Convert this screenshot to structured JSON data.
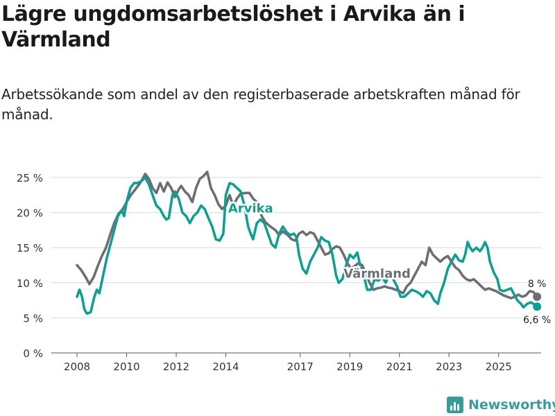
{
  "title": "Lägre ungdomsarbetslöshet i Arvika än i Värmland",
  "subtitle": "Arbetssökande som andel av den registerbaserade arbetskraften månad för månad.",
  "brand": {
    "name": "Newsworthy",
    "icon": "bar-chart-logo-icon"
  },
  "chart_data": {
    "type": "line",
    "x_unit": "year",
    "xlim": [
      2007.2,
      2026.9
    ],
    "ylim": [
      0,
      26
    ],
    "grid": true,
    "y_ticks": [
      {
        "value": 0,
        "label": "0 %"
      },
      {
        "value": 5,
        "label": "5 %"
      },
      {
        "value": 10,
        "label": "10 %"
      },
      {
        "value": 15,
        "label": "15 %"
      },
      {
        "value": 20,
        "label": "20 %"
      },
      {
        "value": 25,
        "label": "25 %"
      }
    ],
    "x_ticks": [
      {
        "value": 2008,
        "label": "2008"
      },
      {
        "value": 2010,
        "label": "2010"
      },
      {
        "value": 2012,
        "label": "2012"
      },
      {
        "value": 2014,
        "label": "2014"
      },
      {
        "value": 2017,
        "label": "2017"
      },
      {
        "value": 2019,
        "label": "2019"
      },
      {
        "value": 2021,
        "label": "2021"
      },
      {
        "value": 2023,
        "label": "2023"
      },
      {
        "value": 2025,
        "label": "2025"
      }
    ],
    "series": [
      {
        "name": "Värmland",
        "color": "#6e6e72",
        "label_color": "#6e6e72",
        "label_at": [
          2020.1,
          10.7
        ],
        "end_label": "8 %",
        "points": [
          [
            2008.0,
            12.5
          ],
          [
            2008.17,
            11.8
          ],
          [
            2008.35,
            10.8
          ],
          [
            2008.5,
            9.8
          ],
          [
            2008.67,
            10.8
          ],
          [
            2008.85,
            12.5
          ],
          [
            2009.0,
            13.8
          ],
          [
            2009.17,
            15.0
          ],
          [
            2009.35,
            17.0
          ],
          [
            2009.5,
            18.5
          ],
          [
            2009.67,
            19.8
          ],
          [
            2009.85,
            20.5
          ],
          [
            2010.0,
            21.5
          ],
          [
            2010.17,
            22.5
          ],
          [
            2010.35,
            23.3
          ],
          [
            2010.5,
            24.0
          ],
          [
            2010.6,
            24.5
          ],
          [
            2010.75,
            25.5
          ],
          [
            2010.9,
            24.8
          ],
          [
            2011.05,
            23.5
          ],
          [
            2011.2,
            22.8
          ],
          [
            2011.35,
            24.2
          ],
          [
            2011.5,
            23.0
          ],
          [
            2011.65,
            24.3
          ],
          [
            2011.8,
            23.5
          ],
          [
            2011.95,
            22.2
          ],
          [
            2012.1,
            23.3
          ],
          [
            2012.2,
            23.8
          ],
          [
            2012.35,
            23.0
          ],
          [
            2012.5,
            22.5
          ],
          [
            2012.65,
            21.5
          ],
          [
            2012.8,
            23.5
          ],
          [
            2012.95,
            24.8
          ],
          [
            2013.1,
            25.2
          ],
          [
            2013.25,
            25.8
          ],
          [
            2013.4,
            23.5
          ],
          [
            2013.55,
            22.5
          ],
          [
            2013.7,
            21.2
          ],
          [
            2013.85,
            20.5
          ],
          [
            2014.0,
            21.0
          ],
          [
            2014.15,
            22.5
          ],
          [
            2014.3,
            21.0
          ],
          [
            2014.45,
            22.0
          ],
          [
            2014.6,
            22.7
          ],
          [
            2014.8,
            22.8
          ],
          [
            2014.95,
            22.8
          ],
          [
            2015.1,
            22.0
          ],
          [
            2015.25,
            21.5
          ],
          [
            2015.45,
            19.5
          ],
          [
            2015.6,
            18.6
          ],
          [
            2015.8,
            18.0
          ],
          [
            2016.0,
            17.5
          ],
          [
            2016.15,
            16.8
          ],
          [
            2016.3,
            17.3
          ],
          [
            2016.5,
            16.8
          ],
          [
            2016.65,
            16.2
          ],
          [
            2016.8,
            16.0
          ],
          [
            2016.95,
            17.0
          ],
          [
            2017.1,
            17.3
          ],
          [
            2017.25,
            16.8
          ],
          [
            2017.4,
            17.2
          ],
          [
            2017.55,
            17.0
          ],
          [
            2017.7,
            16.0
          ],
          [
            2017.85,
            15.0
          ],
          [
            2018.0,
            14.0
          ],
          [
            2018.15,
            14.2
          ],
          [
            2018.3,
            14.8
          ],
          [
            2018.45,
            15.2
          ],
          [
            2018.6,
            15.0
          ],
          [
            2018.75,
            14.0
          ],
          [
            2018.9,
            12.8
          ],
          [
            2019.05,
            12.0
          ],
          [
            2019.2,
            12.4
          ],
          [
            2019.35,
            12.8
          ],
          [
            2019.5,
            12.5
          ],
          [
            2019.65,
            11.2
          ],
          [
            2019.8,
            10.0
          ],
          [
            2019.95,
            9.0
          ],
          [
            2020.1,
            9.2
          ],
          [
            2020.25,
            9.3
          ],
          [
            2020.4,
            9.5
          ],
          [
            2020.55,
            9.3
          ],
          [
            2020.7,
            9.2
          ],
          [
            2020.85,
            9.0
          ],
          [
            2021.0,
            8.8
          ],
          [
            2021.15,
            8.5
          ],
          [
            2021.3,
            9.5
          ],
          [
            2021.45,
            10.0
          ],
          [
            2021.6,
            11.0
          ],
          [
            2021.75,
            12.0
          ],
          [
            2021.9,
            13.0
          ],
          [
            2022.05,
            12.5
          ],
          [
            2022.2,
            15.0
          ],
          [
            2022.35,
            14.0
          ],
          [
            2022.5,
            13.5
          ],
          [
            2022.65,
            13.0
          ],
          [
            2022.8,
            13.5
          ],
          [
            2022.95,
            13.8
          ],
          [
            2023.1,
            13.0
          ],
          [
            2023.25,
            12.2
          ],
          [
            2023.4,
            11.8
          ],
          [
            2023.55,
            11.0
          ],
          [
            2023.7,
            10.5
          ],
          [
            2023.85,
            10.3
          ],
          [
            2024.0,
            10.5
          ],
          [
            2024.15,
            10.0
          ],
          [
            2024.3,
            9.5
          ],
          [
            2024.45,
            9.0
          ],
          [
            2024.6,
            9.2
          ],
          [
            2024.75,
            9.0
          ],
          [
            2024.9,
            8.8
          ],
          [
            2025.05,
            8.5
          ],
          [
            2025.2,
            8.2
          ],
          [
            2025.35,
            8.0
          ],
          [
            2025.5,
            7.8
          ],
          [
            2025.65,
            8.0
          ],
          [
            2025.8,
            8.3
          ],
          [
            2025.95,
            8.0
          ],
          [
            2026.1,
            8.2
          ],
          [
            2026.25,
            8.8
          ],
          [
            2026.4,
            8.7
          ],
          [
            2026.55,
            8.0
          ]
        ]
      },
      {
        "name": "Arvika",
        "color": "#0e9e92",
        "label_color": "#0e9e92",
        "label_at": [
          2015.0,
          20.0
        ],
        "end_label": "6,6 %",
        "points": [
          [
            2008.0,
            8.0
          ],
          [
            2008.1,
            9.0
          ],
          [
            2008.2,
            8.0
          ],
          [
            2008.3,
            6.2
          ],
          [
            2008.4,
            5.6
          ],
          [
            2008.55,
            5.8
          ],
          [
            2008.7,
            8.0
          ],
          [
            2008.8,
            9.0
          ],
          [
            2008.9,
            8.5
          ],
          [
            2009.05,
            11.0
          ],
          [
            2009.2,
            13.5
          ],
          [
            2009.35,
            15.5
          ],
          [
            2009.5,
            17.5
          ],
          [
            2009.65,
            19.5
          ],
          [
            2009.8,
            20.3
          ],
          [
            2009.9,
            19.5
          ],
          [
            2010.0,
            21.5
          ],
          [
            2010.15,
            23.5
          ],
          [
            2010.3,
            24.2
          ],
          [
            2010.45,
            24.2
          ],
          [
            2010.6,
            24.5
          ],
          [
            2010.75,
            25.0
          ],
          [
            2010.9,
            24.0
          ],
          [
            2011.05,
            22.5
          ],
          [
            2011.2,
            21.0
          ],
          [
            2011.35,
            20.5
          ],
          [
            2011.5,
            19.5
          ],
          [
            2011.6,
            19.0
          ],
          [
            2011.7,
            19.2
          ],
          [
            2011.85,
            22.5
          ],
          [
            2011.95,
            23.0
          ],
          [
            2012.1,
            22.0
          ],
          [
            2012.25,
            20.0
          ],
          [
            2012.4,
            19.5
          ],
          [
            2012.55,
            18.5
          ],
          [
            2012.7,
            19.5
          ],
          [
            2012.85,
            20.0
          ],
          [
            2013.0,
            21.0
          ],
          [
            2013.15,
            20.5
          ],
          [
            2013.3,
            19.2
          ],
          [
            2013.45,
            18.0
          ],
          [
            2013.6,
            16.2
          ],
          [
            2013.75,
            16.0
          ],
          [
            2013.9,
            17.0
          ],
          [
            2014.0,
            22.5
          ],
          [
            2014.15,
            24.2
          ],
          [
            2014.3,
            24.0
          ],
          [
            2014.45,
            23.5
          ],
          [
            2014.6,
            23.0
          ],
          [
            2014.75,
            21.0
          ],
          [
            2014.9,
            18.0
          ],
          [
            2015.0,
            17.0
          ],
          [
            2015.1,
            16.2
          ],
          [
            2015.25,
            18.5
          ],
          [
            2015.4,
            19.0
          ],
          [
            2015.55,
            18.5
          ],
          [
            2015.7,
            17.0
          ],
          [
            2015.85,
            15.5
          ],
          [
            2016.0,
            15.0
          ],
          [
            2016.15,
            17.0
          ],
          [
            2016.3,
            18.0
          ],
          [
            2016.45,
            17.2
          ],
          [
            2016.6,
            16.8
          ],
          [
            2016.75,
            17.0
          ],
          [
            2016.85,
            16.5
          ],
          [
            2016.95,
            14.0
          ],
          [
            2017.1,
            12.0
          ],
          [
            2017.25,
            11.3
          ],
          [
            2017.4,
            13.0
          ],
          [
            2017.55,
            14.0
          ],
          [
            2017.7,
            15.0
          ],
          [
            2017.85,
            16.5
          ],
          [
            2018.0,
            16.0
          ],
          [
            2018.15,
            15.8
          ],
          [
            2018.3,
            14.0
          ],
          [
            2018.45,
            11.0
          ],
          [
            2018.55,
            10.0
          ],
          [
            2018.7,
            10.5
          ],
          [
            2018.85,
            12.5
          ],
          [
            2019.0,
            14.0
          ],
          [
            2019.15,
            13.5
          ],
          [
            2019.3,
            14.3
          ],
          [
            2019.45,
            12.0
          ],
          [
            2019.6,
            10.5
          ],
          [
            2019.7,
            9.0
          ],
          [
            2019.85,
            9.0
          ],
          [
            2020.0,
            10.5
          ],
          [
            2020.15,
            10.3
          ],
          [
            2020.3,
            10.8
          ],
          [
            2020.45,
            10.0
          ],
          [
            2020.6,
            11.5
          ],
          [
            2020.75,
            10.5
          ],
          [
            2020.9,
            9.5
          ],
          [
            2021.05,
            8.0
          ],
          [
            2021.2,
            8.0
          ],
          [
            2021.35,
            8.5
          ],
          [
            2021.5,
            9.0
          ],
          [
            2021.65,
            8.8
          ],
          [
            2021.8,
            8.5
          ],
          [
            2021.95,
            8.0
          ],
          [
            2022.1,
            8.8
          ],
          [
            2022.25,
            8.5
          ],
          [
            2022.4,
            7.5
          ],
          [
            2022.55,
            7.0
          ],
          [
            2022.65,
            8.5
          ],
          [
            2022.8,
            10.0
          ],
          [
            2022.95,
            12.0
          ],
          [
            2023.1,
            13.0
          ],
          [
            2023.25,
            14.0
          ],
          [
            2023.4,
            13.2
          ],
          [
            2023.55,
            13.0
          ],
          [
            2023.65,
            14.0
          ],
          [
            2023.75,
            15.8
          ],
          [
            2023.85,
            15.0
          ],
          [
            2023.95,
            14.5
          ],
          [
            2024.1,
            15.0
          ],
          [
            2024.25,
            14.5
          ],
          [
            2024.35,
            15.0
          ],
          [
            2024.45,
            15.8
          ],
          [
            2024.55,
            15.0
          ],
          [
            2024.65,
            13.0
          ],
          [
            2024.8,
            11.5
          ],
          [
            2024.95,
            10.5
          ],
          [
            2025.05,
            9.0
          ],
          [
            2025.2,
            8.8
          ],
          [
            2025.35,
            9.0
          ],
          [
            2025.5,
            9.2
          ],
          [
            2025.6,
            8.5
          ],
          [
            2025.75,
            7.5
          ],
          [
            2025.9,
            7.0
          ],
          [
            2026.0,
            6.5
          ],
          [
            2026.15,
            7.0
          ],
          [
            2026.3,
            7.2
          ],
          [
            2026.45,
            6.9
          ],
          [
            2026.55,
            6.6
          ]
        ]
      }
    ]
  }
}
